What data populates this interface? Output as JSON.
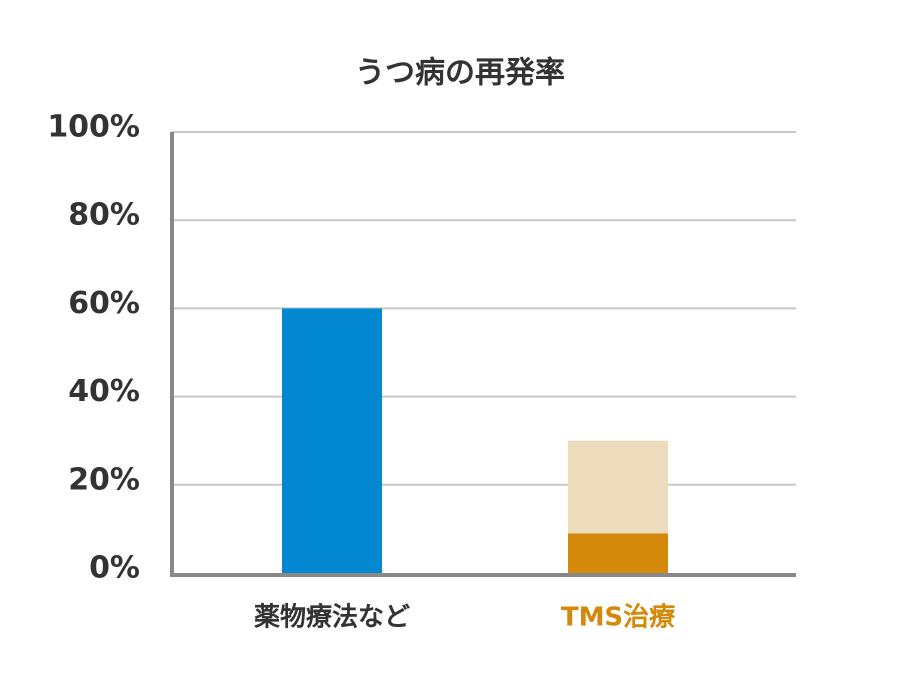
{
  "chart_data": {
    "type": "stacked-bar",
    "title": "うつ病の再発率",
    "categories": [
      "薬物療法など",
      "TMS治療"
    ],
    "category_colors": [
      "#333333",
      "#d4890a"
    ],
    "series": [
      {
        "colors": [
          "#0288d1",
          "#d4890a"
        ],
        "values": [
          60,
          9
        ]
      },
      {
        "color": "#eddcbc",
        "values": [
          null,
          21
        ]
      }
    ],
    "ylim": [
      0,
      100
    ],
    "yticks": [
      {
        "value": 0,
        "label": "0%"
      },
      {
        "value": 20,
        "label": "20%"
      },
      {
        "value": 40,
        "label": "40%"
      },
      {
        "value": 60,
        "label": "60%"
      },
      {
        "value": 80,
        "label": "80%"
      },
      {
        "value": 100,
        "label": "100%"
      }
    ],
    "grid": true
  }
}
